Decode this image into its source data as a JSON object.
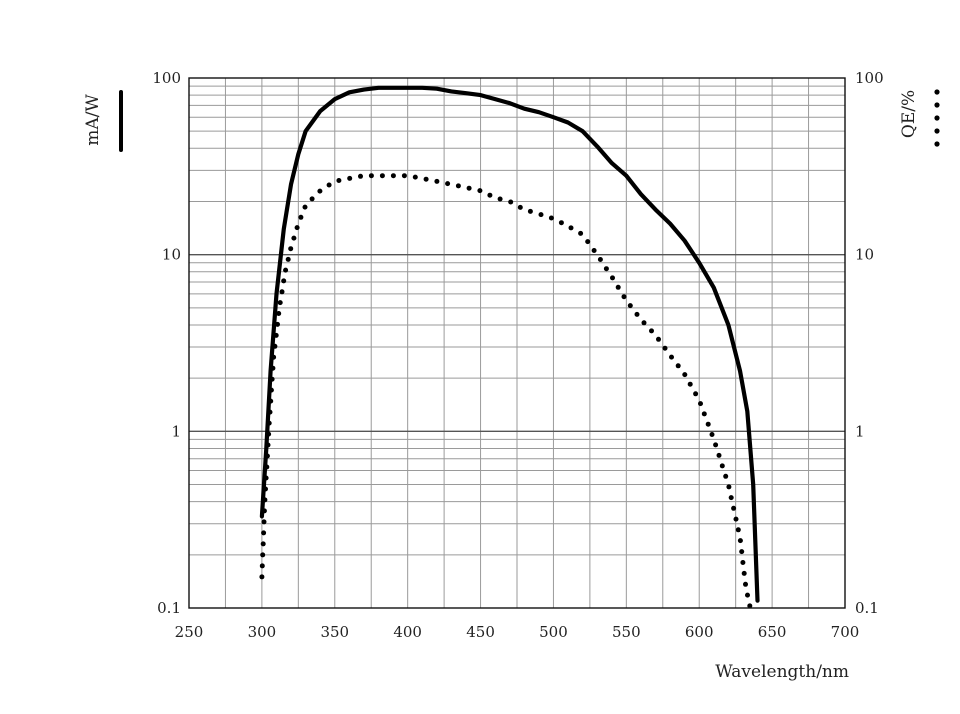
{
  "chart_data": {
    "type": "line",
    "title": "",
    "xlabel": "Wavelength/nm",
    "ylabel_left": "mA/W",
    "ylabel_right": "QE/%",
    "xlim": [
      250,
      700
    ],
    "ylim": [
      0.1,
      100
    ],
    "y_scale": "log",
    "grid": true,
    "x_ticks": [
      "250",
      "300",
      "350",
      "400",
      "450",
      "500",
      "550",
      "600",
      "650",
      "700"
    ],
    "y_ticks_left": [
      "100",
      "10",
      "1",
      "0.1"
    ],
    "y_ticks_right": [
      "100",
      "10",
      "1",
      "0.1"
    ],
    "series": [
      {
        "name": "mA/W",
        "style": "solid",
        "color": "#000000",
        "x": [
          300,
          303,
          306,
          310,
          315,
          320,
          325,
          330,
          340,
          350,
          360,
          370,
          380,
          390,
          400,
          410,
          420,
          430,
          440,
          450,
          460,
          470,
          480,
          490,
          500,
          510,
          520,
          530,
          540,
          550,
          560,
          570,
          580,
          590,
          600,
          610,
          620,
          628,
          633,
          637,
          640
        ],
        "y": [
          0.33,
          0.8,
          2.2,
          6,
          14,
          25,
          37,
          50,
          65,
          76,
          83,
          86,
          88,
          88,
          88,
          88,
          87,
          84,
          82,
          80,
          76,
          72,
          67,
          64,
          60,
          56,
          50,
          41,
          33,
          28,
          22,
          18,
          15,
          12,
          9,
          6.5,
          4,
          2.2,
          1.3,
          0.5,
          0.11
        ]
      },
      {
        "name": "QE/%",
        "style": "dotted",
        "color": "#000000",
        "x": [
          300,
          302,
          305,
          308,
          312,
          316,
          320,
          325,
          330,
          340,
          350,
          360,
          370,
          380,
          390,
          400,
          410,
          420,
          430,
          440,
          450,
          460,
          470,
          480,
          490,
          500,
          510,
          520,
          530,
          540,
          550,
          560,
          570,
          580,
          590,
          600,
          610,
          620,
          628,
          632,
          635
        ],
        "y": [
          0.15,
          0.4,
          1.1,
          2.6,
          5,
          8,
          11,
          15,
          19,
          23,
          26,
          27,
          28,
          28,
          28,
          28,
          27,
          26,
          25,
          24,
          23,
          21,
          20,
          18,
          17,
          16,
          14.5,
          13,
          10,
          7.5,
          5.5,
          4.3,
          3.5,
          2.7,
          2.1,
          1.5,
          0.9,
          0.5,
          0.25,
          0.13,
          0.1
        ]
      }
    ]
  }
}
